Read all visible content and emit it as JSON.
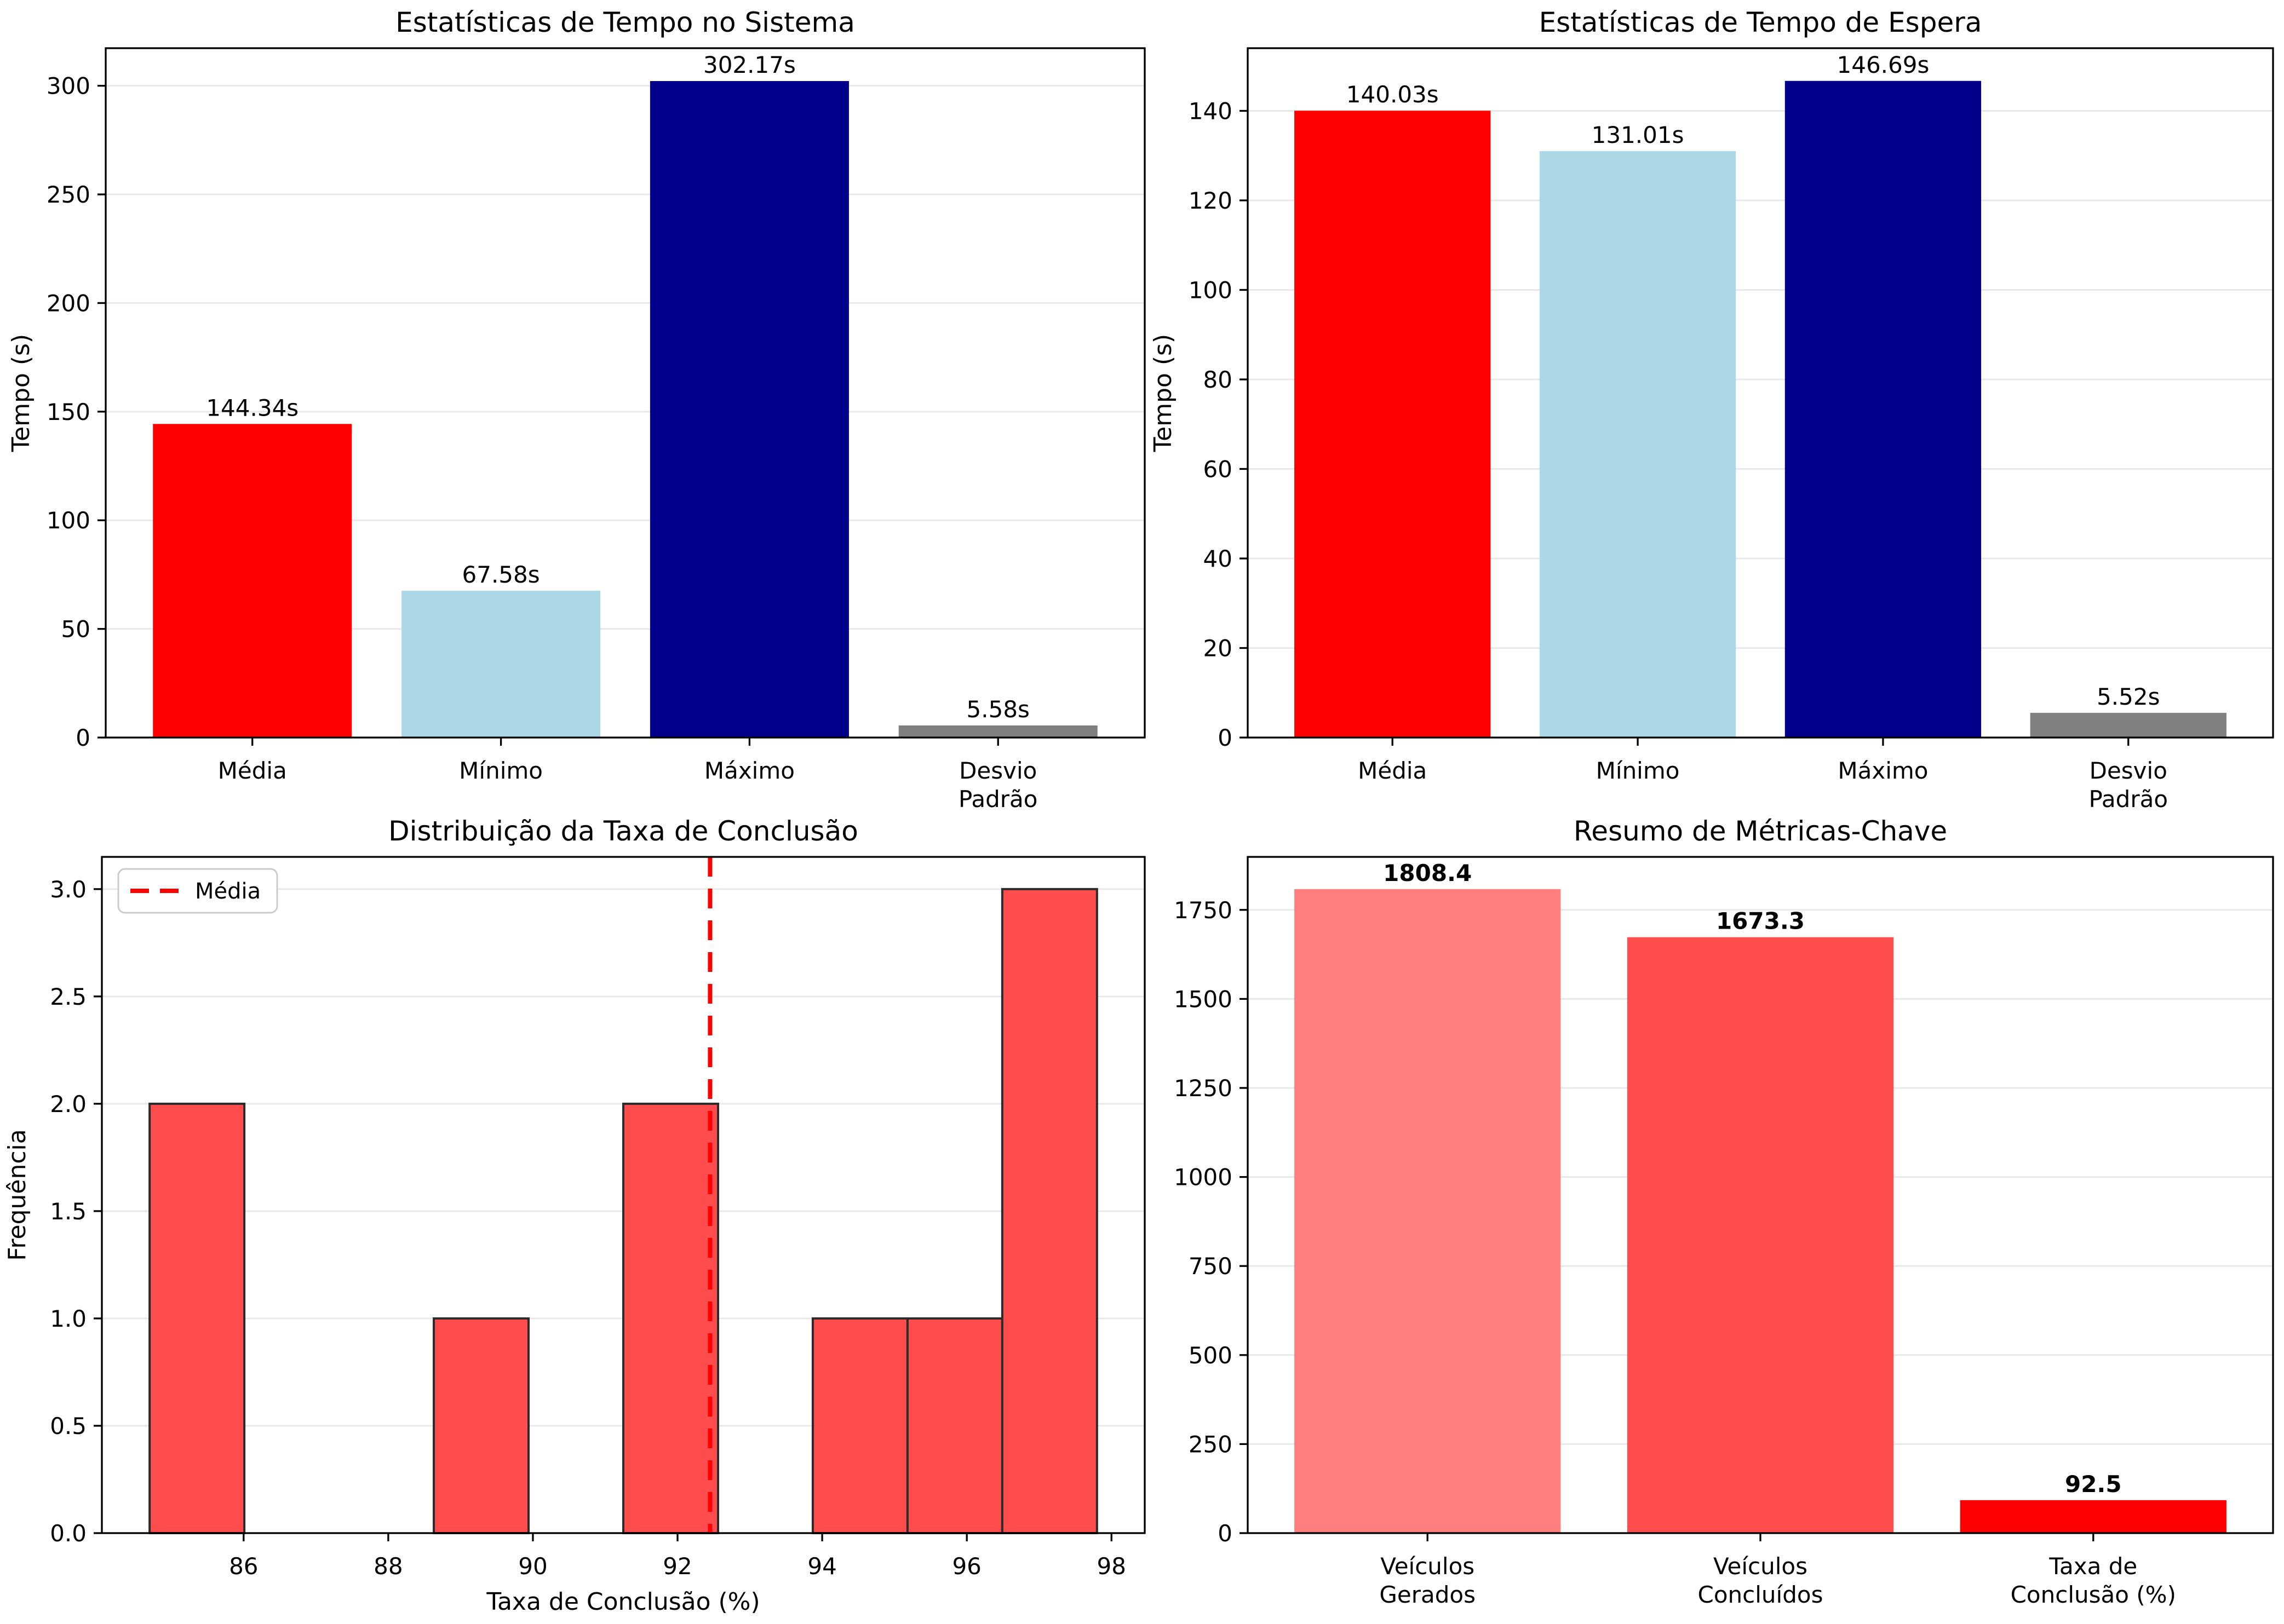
{
  "figure": {
    "background": "#ffffff",
    "grid_color": "#e8e8e8",
    "spine_color": "#000000",
    "text_color": "#000000"
  },
  "chart_data": [
    {
      "id": "tempo-sistema",
      "type": "bar",
      "title": "Estatísticas de Tempo no Sistema",
      "ylabel": "Tempo (s)",
      "categories": [
        [
          "Média"
        ],
        [
          "Mínimo"
        ],
        [
          "Máximo"
        ],
        [
          "Desvio",
          "Padrão"
        ]
      ],
      "values": [
        144.34,
        67.58,
        302.17,
        5.58
      ],
      "value_labels": [
        "144.34s",
        "67.58s",
        "302.17s",
        "5.58s"
      ],
      "bar_colors": [
        "#ff0000",
        "#add8e6",
        "#00008b",
        "#808080"
      ],
      "yticks": [
        0,
        50,
        100,
        150,
        200,
        250,
        300
      ],
      "ytick_labels": [
        "0",
        "50",
        "100",
        "150",
        "200",
        "250",
        "300"
      ],
      "ylim": [
        0,
        317.3
      ],
      "grid": true,
      "bold_value_labels": false
    },
    {
      "id": "tempo-espera",
      "type": "bar",
      "title": "Estatísticas de Tempo de Espera",
      "ylabel": "Tempo (s)",
      "categories": [
        [
          "Média"
        ],
        [
          "Mínimo"
        ],
        [
          "Máximo"
        ],
        [
          "Desvio",
          "Padrão"
        ]
      ],
      "values": [
        140.03,
        131.01,
        146.69,
        5.52
      ],
      "value_labels": [
        "140.03s",
        "131.01s",
        "146.69s",
        "5.52s"
      ],
      "bar_colors": [
        "#ff0000",
        "#add8e6",
        "#00008b",
        "#808080"
      ],
      "yticks": [
        0,
        20,
        40,
        60,
        80,
        100,
        120,
        140
      ],
      "ytick_labels": [
        "0",
        "20",
        "40",
        "60",
        "80",
        "100",
        "120",
        "140"
      ],
      "ylim": [
        0,
        154.0
      ],
      "grid": true,
      "bold_value_labels": false
    },
    {
      "id": "taxa-conclusao-hist",
      "type": "histogram",
      "title": "Distribuição da Taxa de Conclusão",
      "xlabel": "Taxa de Conclusão (%)",
      "ylabel": "Frequência",
      "bin_start": 84.7,
      "bin_width": 1.31,
      "bin_counts": [
        2,
        0,
        0,
        1,
        0,
        2,
        0,
        1,
        1,
        3
      ],
      "bar_color": "#ff4d4d",
      "edge_color": "#2b2b2b",
      "mean_line": {
        "x": 92.45,
        "color": "#ff0000",
        "style": "dashed"
      },
      "legend": {
        "label": "Média",
        "line_color": "#ff0000"
      },
      "xticks": [
        86,
        88,
        90,
        92,
        94,
        96,
        98
      ],
      "xtick_labels": [
        "86",
        "88",
        "90",
        "92",
        "94",
        "96",
        "98"
      ],
      "yticks": [
        0.0,
        0.5,
        1.0,
        1.5,
        2.0,
        2.5,
        3.0
      ],
      "ytick_labels": [
        "0.0",
        "0.5",
        "1.0",
        "1.5",
        "2.0",
        "2.5",
        "3.0"
      ],
      "xlim": [
        84.04,
        98.46
      ],
      "ylim": [
        0,
        3.15
      ],
      "grid": true
    },
    {
      "id": "resumo-metricas",
      "type": "bar",
      "title": "Resumo de Métricas-Chave",
      "ylabel": "",
      "categories": [
        [
          "Veículos",
          "Gerados"
        ],
        [
          "Veículos",
          "Concluídos"
        ],
        [
          "Taxa de",
          "Conclusão (%)"
        ]
      ],
      "values": [
        1808.4,
        1673.3,
        92.5
      ],
      "value_labels": [
        "1808.4",
        "1673.3",
        "92.5"
      ],
      "bar_colors": [
        "#ff7f7f",
        "#ff4d4d",
        "#ff0000"
      ],
      "yticks": [
        0,
        250,
        500,
        750,
        1000,
        1250,
        1500,
        1750
      ],
      "ytick_labels": [
        "0",
        "250",
        "500",
        "750",
        "1000",
        "1250",
        "1500",
        "1750"
      ],
      "ylim": [
        0,
        1898.8
      ],
      "grid": true,
      "bold_value_labels": true
    }
  ]
}
